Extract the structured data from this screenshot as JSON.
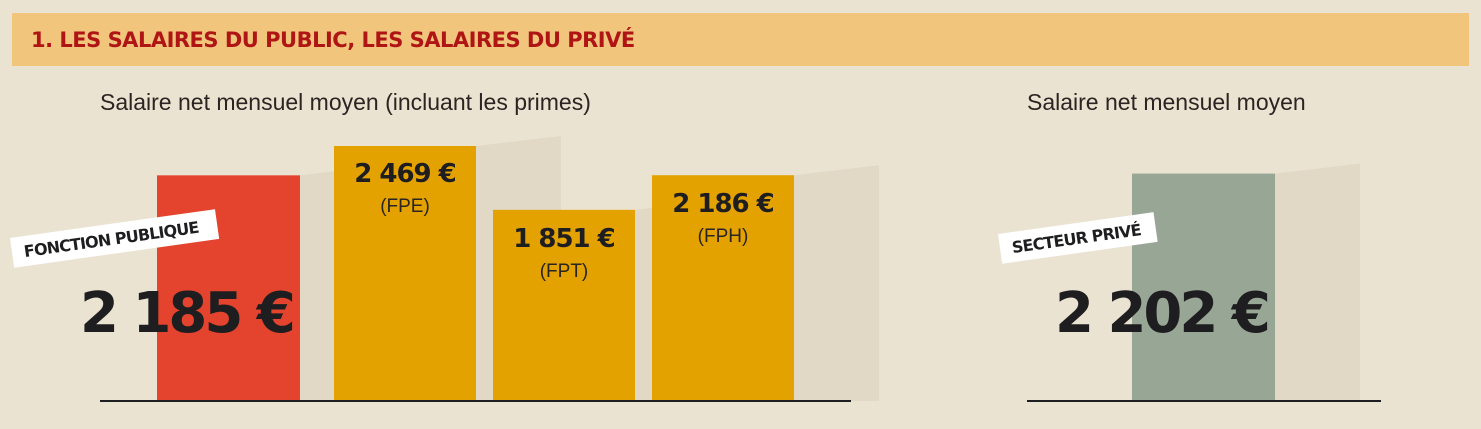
{
  "header": {
    "title": "1. LES SALAIRES DU PUBLIC, LES SALAIRES DU PRIVÉ"
  },
  "colors": {
    "background": "#ebe3d1",
    "header_band": "#f1c57c",
    "header_text": "#b01515",
    "public_total": "#e4442e",
    "public_components": "#e3a200",
    "private": "#98a695",
    "shadow": "#d8d0bc",
    "axis": "#1e1d1f"
  },
  "chart_data": [
    {
      "type": "bar",
      "title": "Salaire net mensuel moyen (incluant les primes)",
      "categories": [
        "FONCTION PUBLIQUE",
        "FPE",
        "FPT",
        "FPH"
      ],
      "values": [
        2185,
        2469,
        1851,
        2186
      ],
      "value_labels": [
        "2 185 €",
        "2 469 €",
        "1 851 €",
        "2 186 €"
      ],
      "sub_labels": [
        "",
        "(FPE)",
        "(FPT)",
        "(FPH)"
      ],
      "tag": "FONCTION PUBLIQUE",
      "ylim": [
        0,
        2469
      ],
      "grid": false
    },
    {
      "type": "bar",
      "title": "Salaire net mensuel moyen",
      "categories": [
        "SECTEUR PRIVÉ"
      ],
      "values": [
        2202
      ],
      "value_labels": [
        "2 202 €"
      ],
      "tag": "SECTEUR PRIVÉ",
      "ylim": [
        0,
        2469
      ],
      "grid": false
    }
  ]
}
